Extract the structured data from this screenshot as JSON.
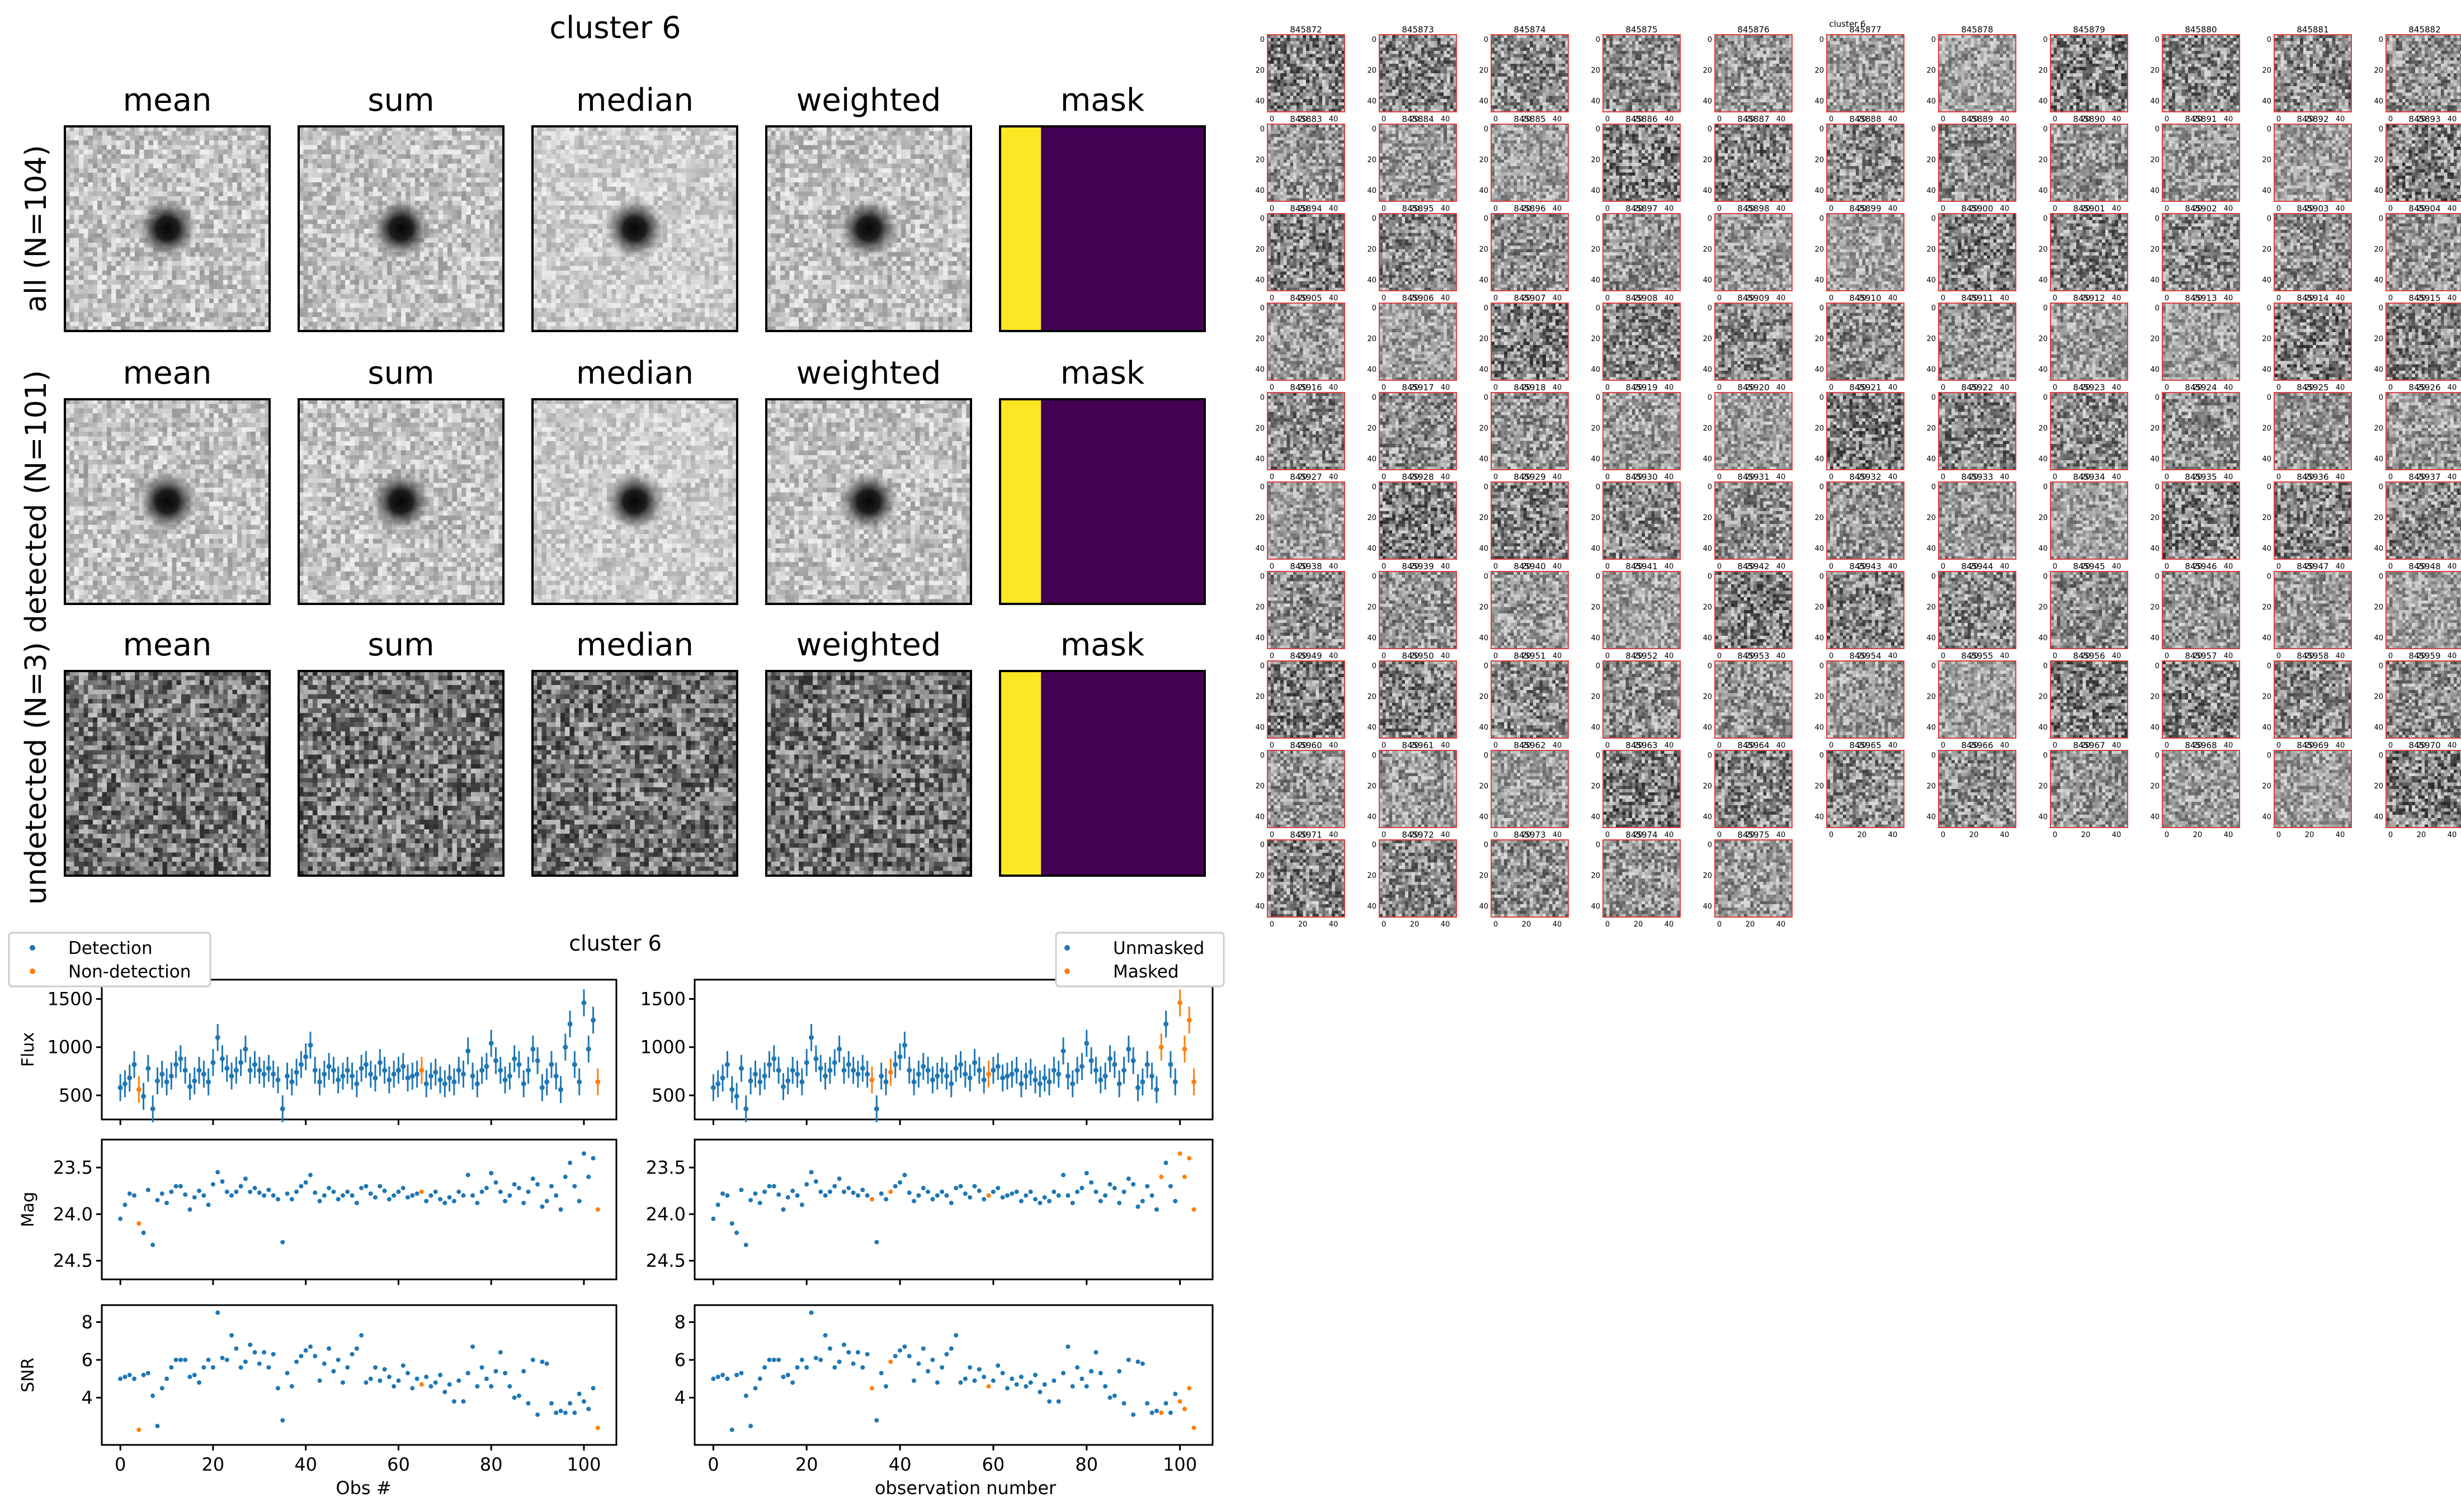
{
  "stack_figure": {
    "title": "cluster 6",
    "column_titles": [
      "mean",
      "sum",
      "median",
      "weighted",
      "mask"
    ],
    "rows": [
      {
        "label": "all (N=104)",
        "mask_fraction": 0.2,
        "background": "light",
        "source": true
      },
      {
        "label": "detected (N=101)",
        "mask_fraction": 0.2,
        "background": "light",
        "source": true
      },
      {
        "label": "undetected (N=3)",
        "mask_fraction": 0.2,
        "background": "dark",
        "source": false
      }
    ],
    "mask_colors": {
      "masked": "#fde725",
      "unmasked": "#440154"
    }
  },
  "lightcurve_figure": {
    "title": "cluster 6",
    "left_legend": [
      "Detection",
      "Non-detection"
    ],
    "right_legend": [
      "Unmasked",
      "Masked"
    ],
    "left_xlabel": "Obs #",
    "right_xlabel": "observation number",
    "colors": {
      "primary": "#1f77b4",
      "secondary": "#ff7f0e"
    }
  },
  "cutout_grid": {
    "title": "cluster 6",
    "ids": [
      "845872",
      "845873",
      "845874",
      "845875",
      "845876",
      "845877",
      "845878",
      "845879",
      "845880",
      "845881",
      "845882",
      "845883",
      "845884",
      "845885",
      "845886",
      "845887",
      "845888",
      "845889",
      "845890",
      "845891",
      "845892",
      "845893",
      "845894",
      "845895",
      "845896",
      "845897",
      "845898",
      "845899",
      "845900",
      "845901",
      "845902",
      "845903",
      "845904",
      "845905",
      "845906",
      "845907",
      "845908",
      "845909",
      "845910",
      "845911",
      "845912",
      "845913",
      "845914",
      "845915",
      "845916",
      "845917",
      "845918",
      "845919",
      "845920",
      "845921",
      "845922",
      "845923",
      "845924",
      "845925",
      "845926",
      "845927",
      "845928",
      "845929",
      "845930",
      "845931",
      "845932",
      "845933",
      "845934",
      "845935",
      "845936",
      "845937",
      "845938",
      "845939",
      "845940",
      "845941",
      "845942",
      "845943",
      "845944",
      "845945",
      "845946",
      "845947",
      "845948",
      "845949",
      "845950",
      "845951",
      "845952",
      "845953",
      "845954",
      "845955",
      "845956",
      "845957",
      "845958",
      "845959",
      "845960",
      "845961",
      "845962",
      "845963",
      "845964",
      "845965",
      "845966",
      "845967",
      "845968",
      "845969",
      "845970",
      "845971",
      "845972",
      "845973",
      "845974",
      "845975"
    ],
    "columns": 11,
    "x_ticks": [
      "0",
      "20",
      "40"
    ],
    "y_ticks": [
      "0",
      "20",
      "40"
    ],
    "frame_color": "#e04040"
  },
  "chart_data": [
    {
      "type": "scatter",
      "name": "lightcurve-left",
      "x": [
        0,
        1,
        2,
        3,
        4,
        5,
        6,
        7,
        8,
        9,
        10,
        11,
        12,
        13,
        14,
        15,
        16,
        17,
        18,
        19,
        20,
        21,
        22,
        23,
        24,
        25,
        26,
        27,
        28,
        29,
        30,
        31,
        32,
        33,
        34,
        35,
        36,
        37,
        38,
        39,
        40,
        41,
        42,
        43,
        44,
        45,
        46,
        47,
        48,
        49,
        50,
        51,
        52,
        53,
        54,
        55,
        56,
        57,
        58,
        59,
        60,
        61,
        62,
        63,
        64,
        65,
        66,
        67,
        68,
        69,
        70,
        71,
        72,
        73,
        74,
        75,
        76,
        77,
        78,
        79,
        80,
        81,
        82,
        83,
        84,
        85,
        86,
        87,
        88,
        89,
        90,
        91,
        92,
        93,
        94,
        95,
        96,
        97,
        98,
        99,
        100,
        101,
        102,
        103
      ],
      "flux": [
        580,
        620,
        680,
        820,
        560,
        490,
        780,
        360,
        650,
        720,
        640,
        700,
        820,
        880,
        760,
        590,
        650,
        760,
        720,
        640,
        840,
        1100,
        880,
        780,
        700,
        760,
        840,
        980,
        760,
        820,
        760,
        720,
        780,
        720,
        660,
        360,
        700,
        640,
        740,
        820,
        900,
        1020,
        760,
        640,
        720,
        800,
        760,
        660,
        700,
        760,
        700,
        620,
        780,
        820,
        720,
        680,
        840,
        760,
        660,
        720,
        760,
        800,
        680,
        700,
        720,
        760,
        620,
        700,
        740,
        660,
        620,
        680,
        640,
        760,
        720,
        960,
        700,
        620,
        760,
        800,
        1040,
        860,
        760,
        660,
        700,
        880,
        820,
        620,
        760,
        980,
        860,
        580,
        640,
        820,
        700,
        560,
        1000,
        1240,
        820,
        640,
        1460,
        980,
        1280,
        640
      ],
      "mag": [
        24.05,
        23.9,
        23.78,
        23.8,
        24.1,
        24.2,
        23.74,
        24.33,
        23.85,
        23.78,
        23.88,
        23.76,
        23.7,
        23.7,
        23.79,
        23.95,
        23.82,
        23.75,
        23.8,
        23.9,
        23.68,
        23.55,
        23.65,
        23.76,
        23.8,
        23.76,
        23.7,
        23.62,
        23.76,
        23.72,
        23.77,
        23.8,
        23.74,
        23.8,
        23.84,
        24.3,
        23.78,
        23.84,
        23.76,
        23.7,
        23.66,
        23.58,
        23.77,
        23.86,
        23.8,
        23.72,
        23.76,
        23.84,
        23.8,
        23.76,
        23.8,
        23.88,
        23.72,
        23.7,
        23.78,
        23.82,
        23.7,
        23.75,
        23.84,
        23.8,
        23.76,
        23.72,
        23.82,
        23.8,
        23.78,
        23.76,
        23.86,
        23.8,
        23.76,
        23.84,
        23.88,
        23.82,
        23.86,
        23.76,
        23.8,
        23.58,
        23.8,
        23.88,
        23.76,
        23.72,
        23.56,
        23.66,
        23.76,
        23.86,
        23.8,
        23.68,
        23.72,
        23.88,
        23.76,
        23.62,
        23.68,
        23.92,
        23.86,
        23.7,
        23.8,
        23.95,
        23.6,
        23.45,
        23.7,
        23.86,
        23.35,
        23.6,
        23.4,
        23.95
      ],
      "snr": [
        5.0,
        5.1,
        5.2,
        5.0,
        2.3,
        5.2,
        5.3,
        4.1,
        2.5,
        4.5,
        5.0,
        5.6,
        6.0,
        6.0,
        6.0,
        5.1,
        5.2,
        4.8,
        5.6,
        6.0,
        5.6,
        8.5,
        6.1,
        6.0,
        7.3,
        6.6,
        5.6,
        5.9,
        6.8,
        6.4,
        5.8,
        6.4,
        5.6,
        6.3,
        4.5,
        2.8,
        5.3,
        4.6,
        5.9,
        6.2,
        6.5,
        6.7,
        6.2,
        4.9,
        5.8,
        6.6,
        5.4,
        6.0,
        4.8,
        5.6,
        6.3,
        6.6,
        7.3,
        4.8,
        5.0,
        5.6,
        4.9,
        5.5,
        5.1,
        4.6,
        4.9,
        5.7,
        5.3,
        4.5,
        5.0,
        4.7,
        5.1,
        4.6,
        4.8,
        5.2,
        4.3,
        4.7,
        3.8,
        4.9,
        3.8,
        5.3,
        6.7,
        4.6,
        5.6,
        5.0,
        4.6,
        5.4,
        6.4,
        5.3,
        4.6,
        4.0,
        4.1,
        5.4,
        3.7,
        6.0,
        3.1,
        5.9,
        5.8,
        3.7,
        3.2,
        3.3,
        3.2,
        3.7,
        3.2,
        4.2,
        3.8,
        3.4,
        4.5,
        2.4
      ],
      "flux_err": 140,
      "secondary_indices": [
        4,
        65,
        103
      ],
      "xlabel": "Obs #",
      "ylabels": [
        "Flux",
        "Mag",
        "SNR"
      ],
      "xlim": [
        -4,
        107
      ],
      "flux_ylim": [
        250,
        1700
      ],
      "mag_ylim": [
        24.7,
        23.2
      ],
      "snr_ylim": [
        1.5,
        8.9
      ],
      "xticks": [
        0,
        20,
        40,
        60,
        80,
        100
      ],
      "flux_ticks": [
        500,
        1000,
        1500
      ],
      "mag_ticks": [
        23.5,
        24.0,
        24.5
      ],
      "snr_ticks": [
        4,
        6,
        8
      ],
      "legend": "top-left"
    },
    {
      "type": "scatter",
      "name": "lightcurve-right",
      "secondary_indices": [
        34,
        38,
        59,
        96,
        100,
        101,
        102,
        103
      ],
      "xlabel": "observation number",
      "legend": "top-right"
    }
  ]
}
